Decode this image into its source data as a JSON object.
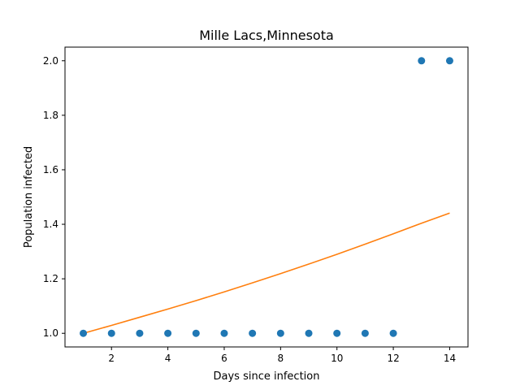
{
  "chart_data": {
    "type": "scatter",
    "title": "Mille Lacs,Minnesota",
    "xlabel": "Days since infection",
    "ylabel": "Population infected",
    "xlim": [
      0.35,
      14.65
    ],
    "ylim": [
      0.95,
      2.05
    ],
    "xticks": [
      2,
      4,
      6,
      8,
      10,
      12,
      14
    ],
    "yticks": [
      1.0,
      1.2,
      1.4,
      1.6,
      1.8,
      2.0
    ],
    "ytick_labels": [
      "1.0",
      "1.2",
      "1.4",
      "1.6",
      "1.8",
      "2.0"
    ],
    "grid": false,
    "series": [
      {
        "kind": "scatter",
        "color": "#1f77b4",
        "x": [
          1,
          2,
          3,
          4,
          5,
          6,
          7,
          8,
          9,
          10,
          11,
          12,
          13,
          14
        ],
        "y": [
          1,
          1,
          1,
          1,
          1,
          1,
          1,
          1,
          1,
          1,
          1,
          1,
          2,
          2
        ]
      },
      {
        "kind": "line",
        "color": "#ff7f0e",
        "x": [
          1,
          2,
          3,
          4,
          5,
          6,
          7,
          8,
          9,
          10,
          11,
          12,
          13,
          14
        ],
        "y": [
          1.0,
          1.029,
          1.059,
          1.089,
          1.12,
          1.152,
          1.185,
          1.219,
          1.254,
          1.29,
          1.327,
          1.365,
          1.404,
          1.441
        ]
      }
    ]
  }
}
